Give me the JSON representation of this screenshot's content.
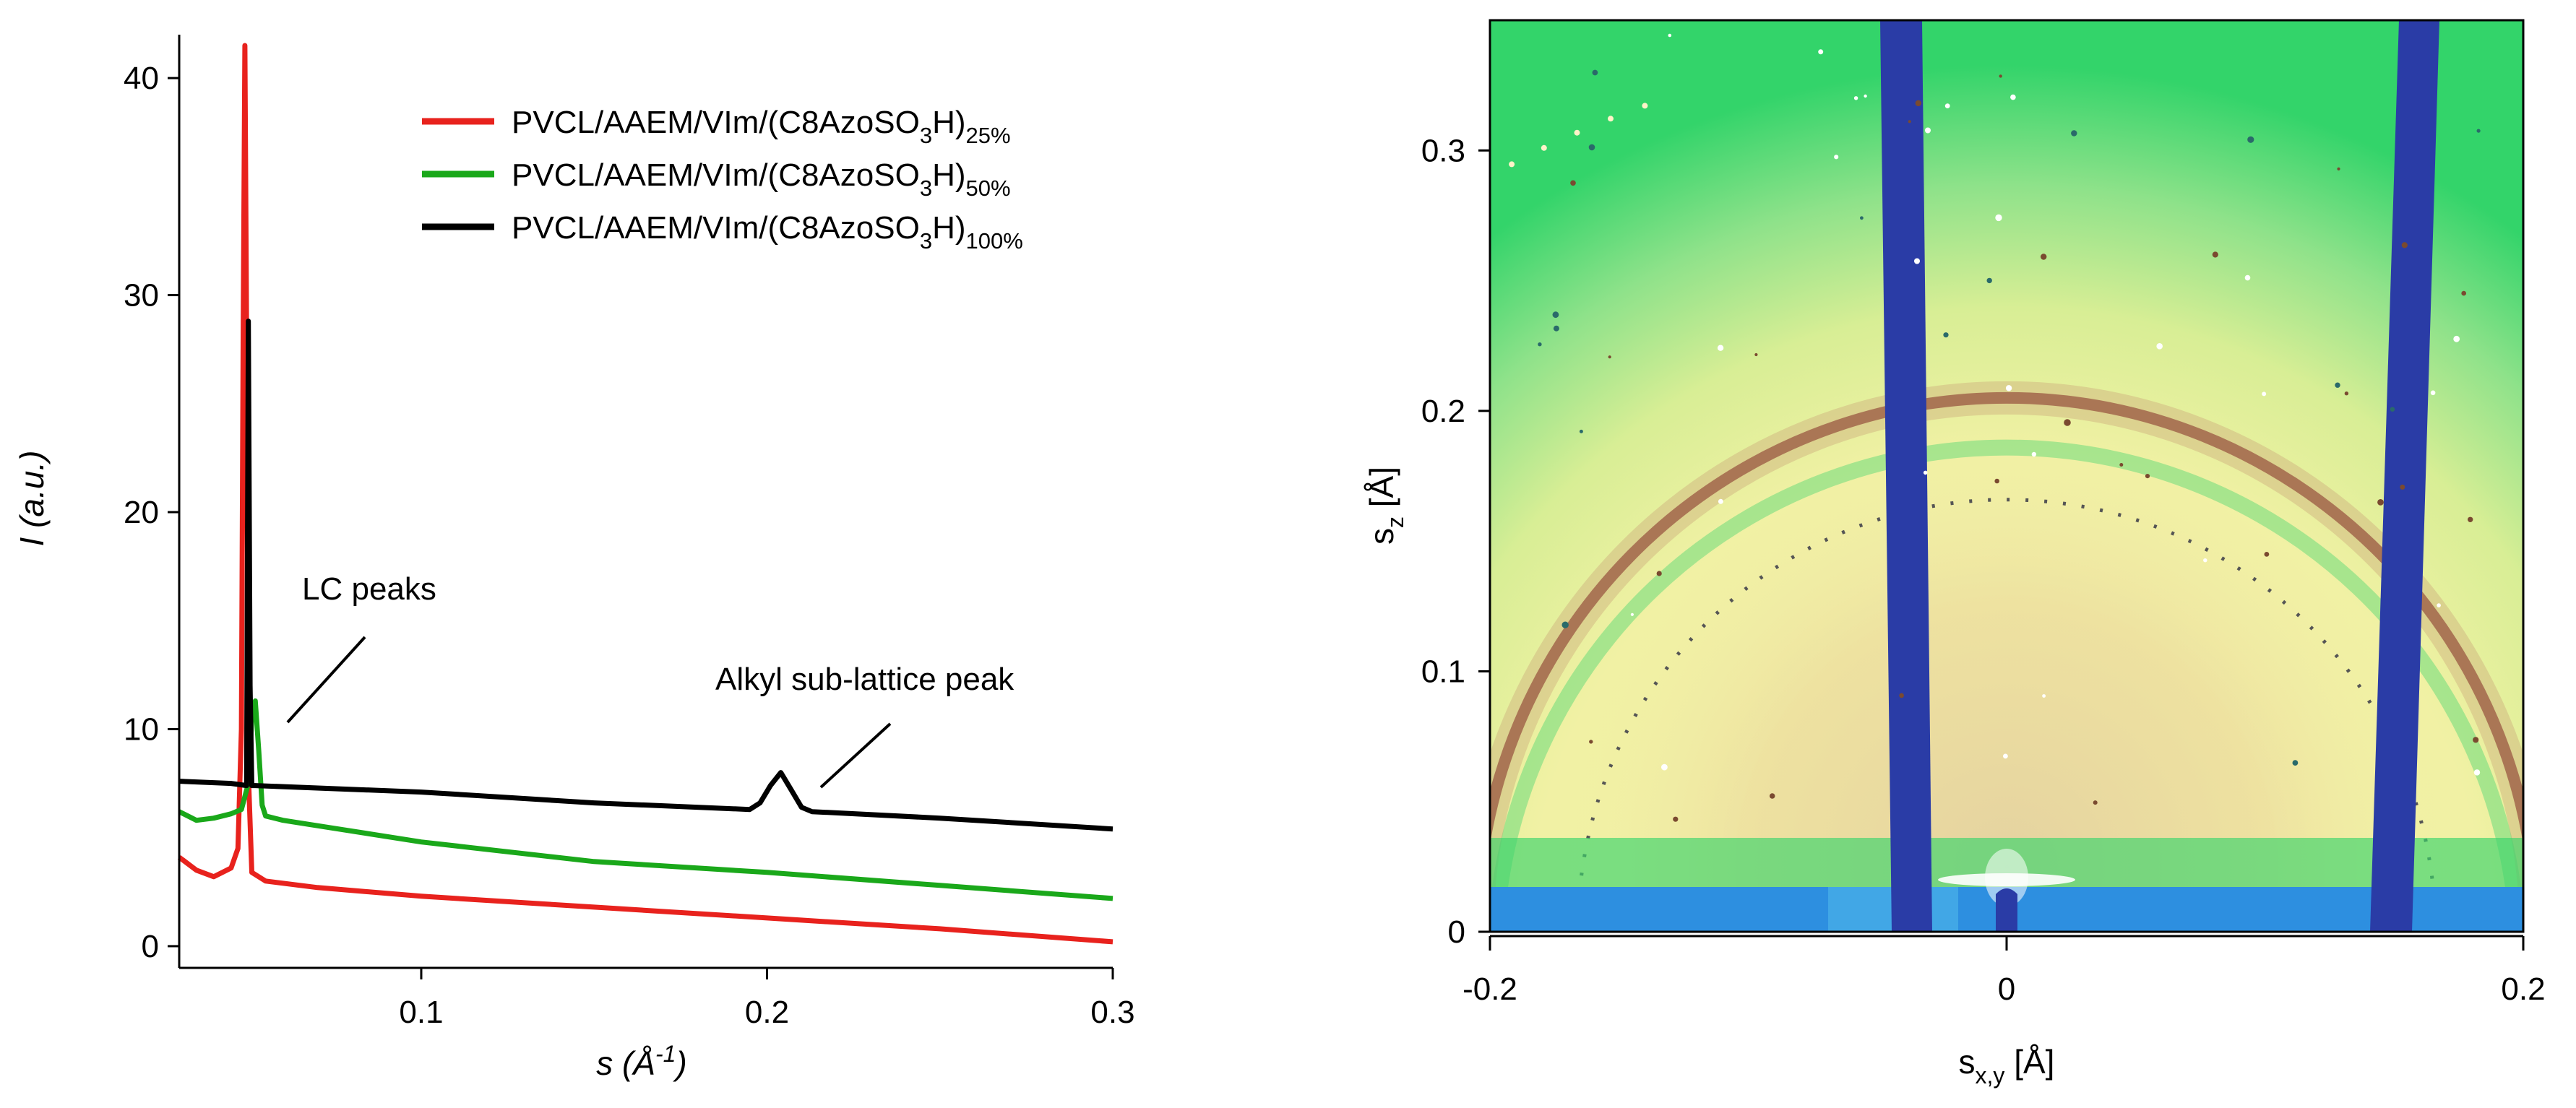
{
  "chart_data": [
    {
      "type": "line",
      "panel": "left",
      "xlabel_main": "s",
      "xlabel_unit_prefix": " (Å",
      "xlabel_unit_exp": "-1",
      "xlabel_unit_suffix": ")",
      "ylabel_main": "I",
      "ylabel_unit": " (a.u.)",
      "xlim": [
        0.03,
        0.3
      ],
      "ylim": [
        -1,
        42
      ],
      "xticks": [
        0.1,
        0.2,
        0.3
      ],
      "xtick_labels": [
        "0.1",
        "0.2",
        "0.3"
      ],
      "yticks": [
        0,
        10,
        20,
        30,
        40
      ],
      "ytick_labels": [
        "0",
        "10",
        "20",
        "30",
        "40"
      ],
      "series": [
        {
          "name": "PVCL/AAEM/VIm/(C8AzoSO3H)25%",
          "legend_main": "PVCL/AAEM/VIm/(C8AzoSO",
          "legend_sub1": "3",
          "legend_mid": "H)",
          "legend_sub2": "25%",
          "color": "#e8221d",
          "x": [
            0.03,
            0.035,
            0.04,
            0.045,
            0.047,
            0.048,
            0.0485,
            0.049,
            0.0495,
            0.05,
            0.051,
            0.055,
            0.07,
            0.1,
            0.15,
            0.2,
            0.25,
            0.3
          ],
          "y": [
            4.1,
            3.5,
            3.2,
            3.6,
            4.5,
            10,
            28,
            41.5,
            28,
            8,
            3.4,
            3.0,
            2.7,
            2.3,
            1.8,
            1.3,
            0.8,
            0.2
          ]
        },
        {
          "name": "PVCL/AAEM/VIm/(C8AzoSO3H)50%",
          "legend_main": "PVCL/AAEM/VIm/(C8AzoSO",
          "legend_sub1": "3",
          "legend_mid": "H)",
          "legend_sub2": "50%",
          "color": "#1aa81a",
          "x": [
            0.03,
            0.035,
            0.04,
            0.045,
            0.048,
            0.05,
            0.051,
            0.052,
            0.053,
            0.054,
            0.055,
            0.06,
            0.1,
            0.15,
            0.2,
            0.25,
            0.3
          ],
          "y": [
            6.2,
            5.8,
            5.9,
            6.1,
            6.3,
            7.5,
            10.5,
            11.3,
            9.0,
            6.5,
            6.0,
            5.8,
            4.8,
            3.9,
            3.4,
            2.8,
            2.2
          ]
        },
        {
          "name": "PVCL/AAEM/VIm/(C8AzoSO3H)100%",
          "legend_main": "PVCL/AAEM/VIm/(C8AzoSO",
          "legend_sub1": "3",
          "legend_mid": "H)",
          "legend_sub2": "100%",
          "color": "#000000",
          "x": [
            0.03,
            0.045,
            0.0495,
            0.05,
            0.0505,
            0.051,
            0.052,
            0.1,
            0.15,
            0.195,
            0.198,
            0.201,
            0.204,
            0.207,
            0.21,
            0.213,
            0.25,
            0.3
          ],
          "y": [
            7.6,
            7.5,
            7.4,
            28.8,
            12,
            7.4,
            7.4,
            7.1,
            6.6,
            6.3,
            6.6,
            7.4,
            8.0,
            7.2,
            6.4,
            6.2,
            5.9,
            5.4
          ]
        }
      ],
      "annotations": [
        {
          "text": "LC peaks"
        },
        {
          "text": "Alkyl sub-lattice peak"
        }
      ]
    },
    {
      "type": "heatmap",
      "panel": "right",
      "xlabel_main": "s",
      "xlabel_sub": "x,y",
      "xlabel_unit": " [Å]",
      "ylabel_main": "s",
      "ylabel_sub": "z",
      "ylabel_unit": " [Å]",
      "xlim": [
        -0.2,
        0.2
      ],
      "ylim": [
        0,
        0.35
      ],
      "xticks": [
        -0.2,
        0,
        0.2
      ],
      "xtick_labels": [
        "-0.2",
        "0",
        "0.2"
      ],
      "yticks": [
        0,
        0.1,
        0.2,
        0.3
      ],
      "ytick_labels": [
        "0",
        "0.1",
        "0.2",
        "0.3"
      ],
      "ring_radius": 0.205,
      "outer_ring_radius": 0.166,
      "colors": {
        "background": "#33d46a",
        "halo": "#f2f0a6",
        "ring": "#8e4a36",
        "beamstop": "#2a3ca6",
        "detector_edge": "#2d8fe0"
      }
    }
  ]
}
